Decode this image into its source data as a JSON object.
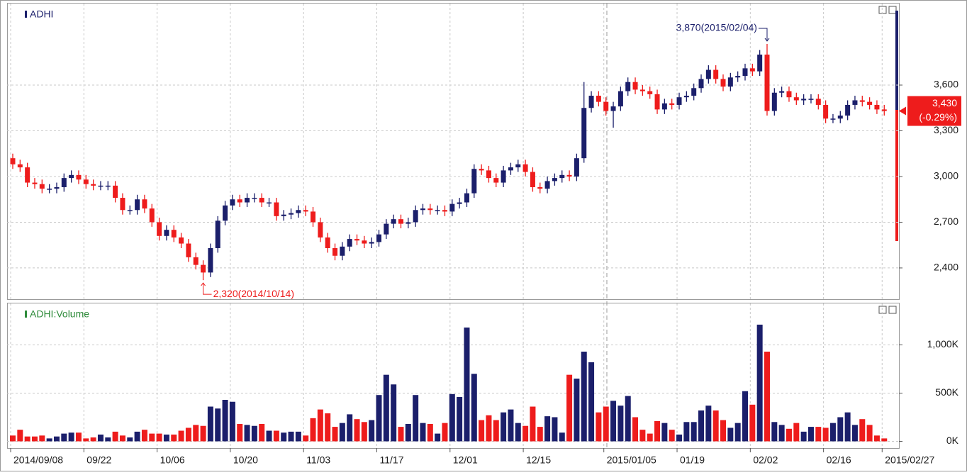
{
  "chart_data": [
    {
      "type": "candlestick",
      "title": "ADHI",
      "up_color": "#1b1f6b",
      "down_color": "#ee1c1c",
      "open": [
        3120,
        3080,
        3060,
        2960,
        2950,
        2920,
        2920,
        2930,
        2990,
        3010,
        2980,
        2950,
        2940,
        2940,
        2940,
        2860,
        2780,
        2780,
        2850,
        2790,
        2700,
        2610,
        2650,
        2600,
        2560,
        2470,
        2420,
        2370,
        2530,
        2710,
        2810,
        2850,
        2830,
        2860,
        2860,
        2830,
        2830,
        2740,
        2750,
        2760,
        2780,
        2770,
        2700,
        2600,
        2530,
        2480,
        2540,
        2590,
        2580,
        2560,
        2570,
        2620,
        2690,
        2720,
        2690,
        2700,
        2780,
        2790,
        2780,
        2780,
        2770,
        2820,
        2830,
        2890,
        3050,
        3040,
        2990,
        2960,
        3040,
        3060,
        3080,
        3030,
        2930,
        2920,
        2970,
        2990,
        3010,
        3000,
        3120,
        3450,
        3530,
        3490,
        3430,
        3460,
        3560,
        3620,
        3570,
        3560,
        3540,
        3440,
        3480,
        3470,
        3520,
        3530,
        3580,
        3640,
        3700,
        3640,
        3590,
        3650,
        3660,
        3710,
        3690,
        3800,
        3430,
        3550,
        3560,
        3520,
        3500,
        3510,
        3510,
        3470,
        3380,
        3380,
        3400,
        3470,
        3500,
        3490,
        3470,
        3440
      ],
      "high": [
        3150,
        3110,
        3090,
        2990,
        2980,
        2950,
        2960,
        3020,
        3040,
        3040,
        3010,
        2980,
        2970,
        2970,
        2970,
        2890,
        2810,
        2880,
        2880,
        2820,
        2730,
        2680,
        2680,
        2630,
        2590,
        2500,
        2450,
        2560,
        2740,
        2840,
        2880,
        2880,
        2890,
        2890,
        2890,
        2860,
        2860,
        2780,
        2790,
        2810,
        2810,
        2800,
        2730,
        2630,
        2560,
        2570,
        2620,
        2620,
        2610,
        2600,
        2650,
        2720,
        2750,
        2750,
        2730,
        2810,
        2820,
        2820,
        2810,
        2810,
        2850,
        2860,
        2920,
        3080,
        3080,
        3070,
        3020,
        3070,
        3090,
        3110,
        3110,
        3060,
        2960,
        3000,
        3020,
        3040,
        3040,
        3150,
        3620,
        3560,
        3560,
        3520,
        3490,
        3590,
        3650,
        3650,
        3600,
        3590,
        3570,
        3510,
        3510,
        3550,
        3560,
        3610,
        3670,
        3730,
        3730,
        3670,
        3680,
        3690,
        3740,
        3740,
        3830,
        3870,
        3580,
        3590,
        3590,
        3550,
        3540,
        3540,
        3540,
        3500,
        3410,
        3430,
        3500,
        3530,
        3530,
        3520,
        3500,
        3470
      ],
      "low": [
        3050,
        3030,
        2930,
        2920,
        2890,
        2890,
        2890,
        2900,
        2960,
        2950,
        2920,
        2910,
        2910,
        2910,
        2830,
        2750,
        2750,
        2750,
        2760,
        2670,
        2580,
        2580,
        2570,
        2530,
        2440,
        2390,
        2320,
        2340,
        2500,
        2680,
        2780,
        2800,
        2800,
        2830,
        2800,
        2800,
        2710,
        2710,
        2720,
        2730,
        2740,
        2670,
        2570,
        2500,
        2450,
        2450,
        2510,
        2550,
        2530,
        2530,
        2540,
        2590,
        2660,
        2660,
        2660,
        2670,
        2750,
        2750,
        2750,
        2740,
        2740,
        2790,
        2800,
        2860,
        3010,
        2960,
        2930,
        2930,
        3010,
        3030,
        3000,
        2900,
        2890,
        2890,
        2940,
        2960,
        2970,
        2970,
        3090,
        3420,
        3460,
        3400,
        3320,
        3430,
        3530,
        3540,
        3530,
        3510,
        3410,
        3410,
        3440,
        3440,
        3490,
        3500,
        3550,
        3610,
        3610,
        3560,
        3560,
        3620,
        3630,
        3660,
        3660,
        3400,
        3400,
        3520,
        3490,
        3470,
        3470,
        3480,
        3440,
        3350,
        3350,
        3350,
        3370,
        3440,
        3460,
        3440,
        3410,
        3400
      ],
      "close": [
        3080,
        3060,
        2960,
        2950,
        2920,
        2920,
        2930,
        2990,
        3010,
        2980,
        2950,
        2940,
        2940,
        2940,
        2860,
        2780,
        2780,
        2850,
        2790,
        2700,
        2610,
        2650,
        2600,
        2560,
        2470,
        2420,
        2370,
        2530,
        2710,
        2810,
        2850,
        2830,
        2860,
        2860,
        2830,
        2830,
        2740,
        2750,
        2760,
        2780,
        2770,
        2700,
        2600,
        2530,
        2480,
        2540,
        2590,
        2580,
        2560,
        2570,
        2620,
        2690,
        2720,
        2690,
        2700,
        2780,
        2790,
        2780,
        2780,
        2770,
        2820,
        2830,
        2890,
        3050,
        3040,
        2990,
        2960,
        3040,
        3060,
        3080,
        3030,
        2930,
        2920,
        2970,
        2990,
        3010,
        3000,
        3120,
        3450,
        3530,
        3490,
        3430,
        3460,
        3560,
        3620,
        3570,
        3560,
        3540,
        3440,
        3480,
        3470,
        3520,
        3530,
        3580,
        3640,
        3700,
        3640,
        3590,
        3650,
        3660,
        3710,
        3690,
        3800,
        3430,
        3550,
        3560,
        3520,
        3500,
        3510,
        3510,
        3470,
        3380,
        3380,
        3400,
        3470,
        3500,
        3490,
        3470,
        3440,
        3430
      ],
      "ylim": [
        2195,
        4135
      ],
      "yticks": [
        {
          "value": 2400,
          "label": "2,400"
        },
        {
          "value": 2700,
          "label": "2,700"
        },
        {
          "value": 3000,
          "label": "3,000"
        },
        {
          "value": 3300,
          "label": "3,300"
        },
        {
          "value": 3600,
          "label": "3,600"
        }
      ],
      "high_annotation": "3,870(2015/02/04)",
      "low_annotation": "2,320(2014/10/14)",
      "last_price": {
        "value": 3430,
        "label": "3,430"
      },
      "change": {
        "value": -0.29,
        "label": "(-0.29%)"
      },
      "grid": true
    },
    {
      "type": "bar",
      "title": "ADHI:Volume",
      "categories": [
        "2014/09/08",
        null,
        null,
        null,
        null,
        null,
        null,
        null,
        null,
        null,
        "09/22",
        null,
        null,
        null,
        null,
        null,
        null,
        null,
        null,
        null,
        "10/06",
        null,
        null,
        null,
        null,
        null,
        null,
        null,
        null,
        null,
        "10/20",
        null,
        null,
        null,
        null,
        null,
        null,
        null,
        null,
        null,
        "11/03",
        null,
        null,
        null,
        null,
        null,
        null,
        null,
        null,
        null,
        "11/17",
        null,
        null,
        null,
        null,
        null,
        null,
        null,
        null,
        null,
        "12/01",
        null,
        null,
        null,
        null,
        null,
        null,
        null,
        null,
        null,
        "12/15",
        null,
        null,
        null,
        null,
        null,
        null,
        null,
        null,
        null,
        null,
        "2015/01/05",
        null,
        null,
        null,
        null,
        null,
        null,
        null,
        null,
        null,
        "01/19",
        null,
        null,
        null,
        null,
        null,
        null,
        null,
        null,
        null,
        "02/02",
        null,
        null,
        null,
        null,
        null,
        null,
        null,
        null,
        null,
        "02/16",
        null,
        null,
        null,
        null,
        null,
        null,
        null,
        "2015/02/27"
      ],
      "values": [
        60000,
        120000,
        50000,
        50000,
        60000,
        30000,
        50000,
        80000,
        90000,
        90000,
        30000,
        40000,
        70000,
        40000,
        100000,
        60000,
        40000,
        100000,
        120000,
        80000,
        80000,
        70000,
        70000,
        110000,
        140000,
        170000,
        160000,
        360000,
        340000,
        430000,
        410000,
        180000,
        170000,
        160000,
        180000,
        110000,
        110000,
        90000,
        100000,
        100000,
        60000,
        240000,
        330000,
        290000,
        150000,
        190000,
        280000,
        230000,
        200000,
        220000,
        480000,
        690000,
        590000,
        150000,
        180000,
        480000,
        190000,
        180000,
        80000,
        190000,
        490000,
        460000,
        1180000,
        700000,
        220000,
        270000,
        220000,
        300000,
        330000,
        190000,
        160000,
        360000,
        150000,
        260000,
        250000,
        90000,
        690000,
        650000,
        930000,
        820000,
        300000,
        360000,
        420000,
        370000,
        470000,
        250000,
        120000,
        80000,
        210000,
        190000,
        120000,
        70000,
        200000,
        200000,
        320000,
        370000,
        320000,
        220000,
        140000,
        190000,
        520000,
        380000,
        1210000,
        930000,
        200000,
        170000,
        130000,
        190000,
        100000,
        150000,
        150000,
        140000,
        190000,
        250000,
        300000,
        170000,
        230000,
        170000,
        60000,
        30000
      ],
      "ylim": [
        -70000,
        1430000
      ],
      "yticks": [
        {
          "value": 0,
          "label": "0K"
        },
        {
          "value": 500000,
          "label": "500K"
        },
        {
          "value": 1000000,
          "label": "1,000K"
        }
      ],
      "title_color": "#2e8b3a",
      "grid": true
    }
  ]
}
